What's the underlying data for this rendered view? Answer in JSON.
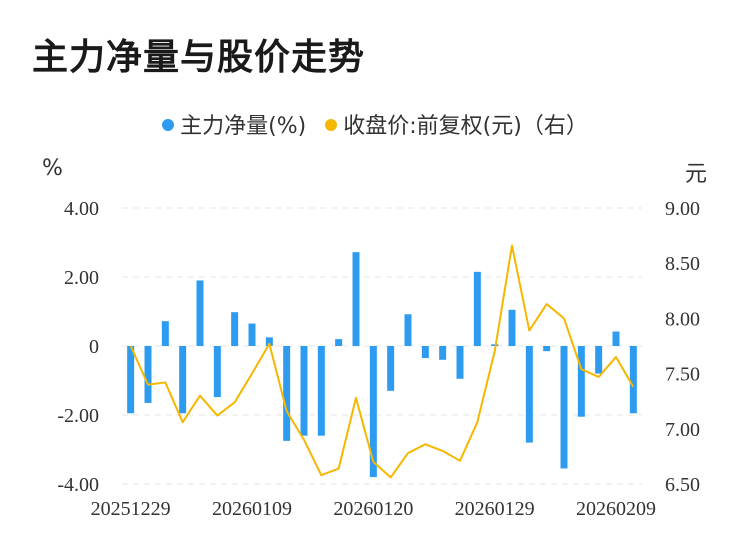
{
  "title": "主力净量与股价走势",
  "legend": {
    "series1": "主力净量(%)",
    "series2": "收盘价:前复权(元)（右）"
  },
  "units": {
    "left": "%",
    "right": "元"
  },
  "colors": {
    "bar": "#2d9cf0",
    "line": "#f5b700",
    "grid": "#e6e6e6"
  },
  "chart_data": {
    "type": "bar+line",
    "x_tick_labels": [
      "20251229",
      "20260109",
      "20260120",
      "20260129",
      "20260209"
    ],
    "x_tick_indices": [
      0,
      7,
      14,
      21,
      28
    ],
    "left_axis": {
      "ylim": [
        -4,
        4
      ],
      "ticks": [
        "4.00",
        "2.00",
        "0",
        "-2.00",
        "-4.00"
      ]
    },
    "right_axis": {
      "ylim": [
        6.5,
        9.0
      ],
      "ticks": [
        "9.00",
        "8.50",
        "8.00",
        "7.50",
        "7.00",
        "6.50"
      ]
    },
    "series": [
      {
        "name": "主力净量(%)",
        "type": "bar",
        "axis": "left",
        "values": [
          -1.95,
          -1.65,
          0.72,
          -1.95,
          1.9,
          -1.48,
          0.98,
          0.65,
          0.25,
          -2.75,
          -2.6,
          -2.6,
          0.2,
          2.72,
          -3.8,
          -1.3,
          0.92,
          -0.35,
          -0.4,
          -0.95,
          2.15,
          0.05,
          1.05,
          -2.8,
          -0.15,
          -3.55,
          -2.05,
          -0.8,
          0.42,
          -1.95
        ]
      },
      {
        "name": "收盘价:前复权(元)（右）",
        "type": "line",
        "axis": "right",
        "values": [
          7.75,
          7.4,
          7.42,
          7.06,
          7.3,
          7.12,
          7.24,
          7.5,
          7.77,
          7.16,
          6.9,
          6.58,
          6.64,
          7.28,
          6.7,
          6.56,
          6.78,
          6.86,
          6.8,
          6.71,
          7.06,
          7.7,
          8.66,
          7.89,
          8.13,
          8.0,
          7.54,
          7.47,
          7.65,
          7.38
        ]
      }
    ]
  }
}
